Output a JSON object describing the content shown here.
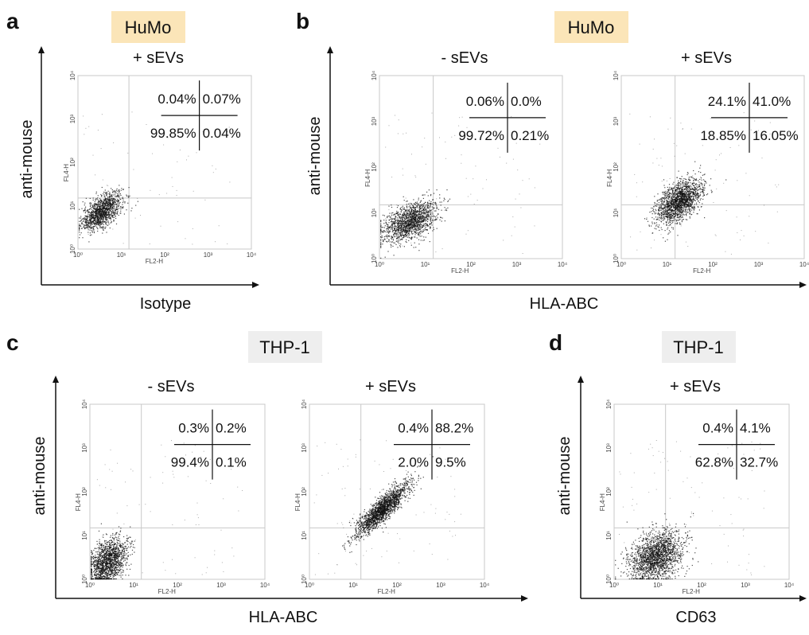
{
  "colors": {
    "humo_tag": "#fbe5b8",
    "thp1_tag": "#eeeeee",
    "dots": "#111111",
    "gate": "#c8c8c8",
    "frame": "#c8c8c8"
  },
  "panels": [
    {
      "letter": "a",
      "cell": "HuMo",
      "ylabel": "anti-mouse",
      "xlabel": "Isotype"
    },
    {
      "letter": "b",
      "cell": "HuMo",
      "ylabel": "anti-mouse",
      "xlabel": "HLA-ABC"
    },
    {
      "letter": "c",
      "cell": "THP-1",
      "ylabel": "anti-mouse",
      "xlabel": "HLA-ABC"
    },
    {
      "letter": "d",
      "cell": "THP-1",
      "ylabel": "anti-mouse",
      "xlabel": "CD63"
    }
  ],
  "chart_data": [
    {
      "type": "scatter",
      "panel": "a",
      "title": "+ sEVs",
      "xlabel": "FL2-H",
      "ylabel": "FL4-H",
      "log_scale": true,
      "xticks": [
        "10⁰",
        "10¹",
        "10²",
        "10³",
        "10⁴"
      ],
      "yticks": [
        "10⁰",
        "10¹",
        "10²",
        "10³",
        "10⁴"
      ],
      "xlim": [
        1,
        10000
      ],
      "ylim": [
        1,
        10000
      ],
      "quadrants": {
        "ul": "0.04%",
        "ur": "0.07%",
        "ll": "99.85%",
        "lr": "0.04%"
      },
      "gate": [
        15,
        15
      ],
      "population": {
        "cx": 3.5,
        "cy": 7.5,
        "sx": 0.23,
        "sy": 0.22,
        "corr": 0.6,
        "n": 1300
      }
    },
    {
      "type": "scatter",
      "panel": "b",
      "title": "- sEVs",
      "xlabel": "FL2-H",
      "ylabel": "FL4-H",
      "log_scale": true,
      "xticks": [
        "10⁰",
        "10¹",
        "10²",
        "10³",
        "10⁴"
      ],
      "yticks": [
        "10⁰",
        "10¹",
        "10²",
        "10³",
        "10⁴"
      ],
      "xlim": [
        1,
        10000
      ],
      "ylim": [
        1,
        10000
      ],
      "quadrants": {
        "ul": "0.06%",
        "ur": "0.0%",
        "ll": "99.72%",
        "lr": "0.21%"
      },
      "gate": [
        15,
        15
      ],
      "population": {
        "cx": 4.5,
        "cy": 6.5,
        "sx": 0.3,
        "sy": 0.22,
        "corr": 0.5,
        "n": 1500
      }
    },
    {
      "type": "scatter",
      "panel": "b",
      "title": "+ sEVs",
      "xlabel": "FL2-H",
      "ylabel": "FL4-H",
      "log_scale": true,
      "xticks": [
        "10⁰",
        "10¹",
        "10²",
        "10³",
        "10⁴"
      ],
      "yticks": [
        "10⁰",
        "10¹",
        "10²",
        "10³",
        "10⁴"
      ],
      "xlim": [
        1,
        10000
      ],
      "ylim": [
        1,
        10000
      ],
      "quadrants": {
        "ul": "24.1%",
        "ur": "41.0%",
        "ll": "18.85%",
        "lr": "16.05%"
      },
      "gate": [
        15,
        15
      ],
      "population": {
        "cx": 18,
        "cy": 18,
        "sx": 0.25,
        "sy": 0.25,
        "corr": 0.55,
        "n": 1700
      }
    },
    {
      "type": "scatter",
      "panel": "c",
      "title": "- sEVs",
      "xlabel": "FL2-H",
      "ylabel": "FL4-H",
      "log_scale": true,
      "xticks": [
        "10⁰",
        "10¹",
        "10²",
        "10³",
        "10⁴"
      ],
      "yticks": [
        "10⁰",
        "10¹",
        "10²",
        "10³",
        "10⁴"
      ],
      "xlim": [
        1,
        10000
      ],
      "ylim": [
        1,
        10000
      ],
      "quadrants": {
        "ul": "0.3%",
        "ur": "0.2%",
        "ll": "99.4%",
        "lr": "0.1%"
      },
      "gate": [
        15,
        15
      ],
      "population": {
        "cx": 2.5,
        "cy": 2.5,
        "sx": 0.22,
        "sy": 0.28,
        "corr": 0.4,
        "n": 1500
      }
    },
    {
      "type": "scatter",
      "panel": "c",
      "title": "+ sEVs",
      "xlabel": "FL2-H",
      "ylabel": "FL4-H",
      "log_scale": true,
      "xticks": [
        "10⁰",
        "10¹",
        "10²",
        "10³",
        "10⁴"
      ],
      "yticks": [
        "10⁰",
        "10¹",
        "10²",
        "10³",
        "10⁴"
      ],
      "xlim": [
        1,
        10000
      ],
      "ylim": [
        1,
        10000
      ],
      "quadrants": {
        "ul": "0.4%",
        "ur": "88.2%",
        "ll": "2.0%",
        "lr": "9.5%"
      },
      "gate": [
        15,
        15
      ],
      "population": {
        "cx": 45,
        "cy": 40,
        "sx": 0.3,
        "sy": 0.3,
        "corr": 0.88,
        "n": 1800
      }
    },
    {
      "type": "scatter",
      "panel": "d",
      "title": "+ sEVs",
      "xlabel": "FL2-H",
      "ylabel": "FL4-H",
      "log_scale": true,
      "xticks": [
        "10⁰",
        "10¹",
        "10²",
        "10³",
        "10⁴"
      ],
      "yticks": [
        "10⁰",
        "10¹",
        "10²",
        "10³",
        "10⁴"
      ],
      "xlim": [
        1,
        10000
      ],
      "ylim": [
        1,
        10000
      ],
      "quadrants": {
        "ul": "0.4%",
        "ur": "4.1%",
        "ll": "62.8%",
        "lr": "32.7%"
      },
      "gate": [
        15,
        15
      ],
      "population": {
        "cx": 9,
        "cy": 3.5,
        "sx": 0.3,
        "sy": 0.28,
        "corr": 0.3,
        "n": 1800
      }
    }
  ]
}
